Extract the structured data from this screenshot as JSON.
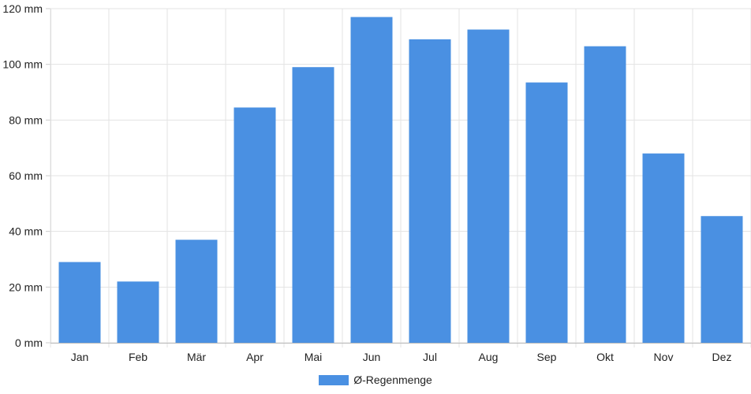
{
  "chart_data": {
    "type": "bar",
    "title": "",
    "xlabel": "",
    "ylabel": "",
    "categories": [
      "Jan",
      "Feb",
      "Mär",
      "Apr",
      "Mai",
      "Jun",
      "Jul",
      "Aug",
      "Sep",
      "Okt",
      "Nov",
      "Dez"
    ],
    "series": [
      {
        "name": "Ø-Regenmenge",
        "color": "#4a90e2",
        "values": [
          29,
          22,
          37,
          84.5,
          99,
          117,
          109,
          112.5,
          93.5,
          106.5,
          68,
          45.5
        ]
      }
    ],
    "ylim": [
      0,
      120
    ],
    "yticks": [
      0,
      20,
      40,
      60,
      80,
      100,
      120
    ],
    "yunit": "mm",
    "grid": true,
    "legend": "bottom-center"
  }
}
